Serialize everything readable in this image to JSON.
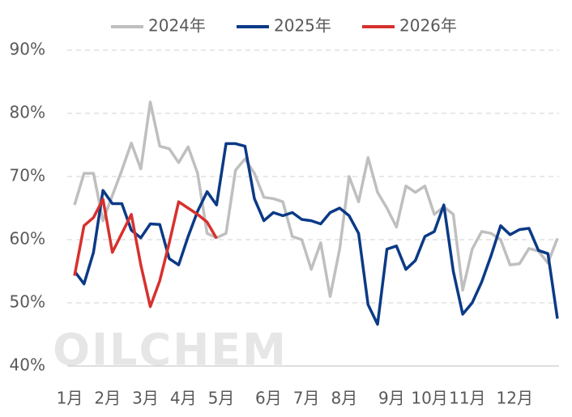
{
  "chart_data": {
    "type": "line",
    "watermark": "OILCHEM",
    "categories": [
      "1月",
      null,
      null,
      null,
      "2月",
      null,
      null,
      null,
      "3月",
      null,
      null,
      null,
      "4月",
      null,
      null,
      null,
      "5月",
      null,
      null,
      null,
      null,
      "6月",
      null,
      null,
      null,
      "7月",
      null,
      null,
      null,
      "8月",
      null,
      null,
      null,
      null,
      "9月",
      null,
      null,
      null,
      "10月",
      null,
      null,
      null,
      "11月",
      null,
      null,
      null,
      null,
      "12月",
      null,
      null,
      null,
      null
    ],
    "series": [
      {
        "name": "2024年",
        "color": "#bfbfbf",
        "values": [
          65.5,
          70.5,
          70.5,
          63,
          67,
          71,
          75.3,
          71.2,
          81.8,
          74.8,
          74.4,
          72.2,
          74.7,
          70.5,
          61,
          60.3,
          61,
          71,
          72.8,
          70.5,
          66.7,
          66.5,
          66,
          60.5,
          60,
          55.3,
          59.5,
          51,
          58.5,
          70,
          66,
          73,
          67.5,
          65,
          62,
          68.5,
          67.5,
          68.5,
          64,
          65.2,
          64,
          52,
          58.5,
          61.3,
          61,
          60,
          56,
          56.2,
          58.6,
          58.2,
          56.3,
          60.2
        ]
      },
      {
        "name": "2025年",
        "color": "#0b3a86",
        "values": [
          55,
          53,
          58,
          67.8,
          65.7,
          65.7,
          61.5,
          60.3,
          62.5,
          62.4,
          57,
          56,
          60.5,
          64.5,
          67.6,
          65.5,
          75.2,
          75.2,
          74.8,
          66.5,
          63,
          64.3,
          63.8,
          64.3,
          63.2,
          63,
          62.5,
          64.3,
          65,
          63.8,
          61,
          49.7,
          46.6,
          58.5,
          59,
          55.3,
          56.7,
          60.5,
          61.3,
          65.5,
          55,
          48.2,
          50,
          53.3,
          57.5,
          62.2,
          60.8,
          61.6,
          61.8,
          58.3,
          57.8,
          47.5
        ]
      },
      {
        "name": "2026年",
        "color": "#d7312e",
        "values": [
          54.3,
          62.2,
          63.5,
          66.4,
          58,
          61,
          64,
          56,
          49.4,
          53.5,
          59.5,
          66,
          65,
          64,
          62.8,
          60.2,
          null,
          null,
          null,
          null,
          null,
          null,
          null,
          null,
          null,
          null,
          null,
          null,
          null,
          null,
          null,
          null,
          null,
          null,
          null,
          null,
          null,
          null,
          null,
          null,
          null,
          null,
          null,
          null,
          null,
          null,
          null,
          null,
          null,
          null,
          null,
          null
        ]
      }
    ],
    "ylim": [
      40,
      90
    ],
    "yticks": [
      {
        "value": 40,
        "label": "40%"
      },
      {
        "value": 50,
        "label": "50%"
      },
      {
        "value": 60,
        "label": "60%"
      },
      {
        "value": 70,
        "label": "70%"
      },
      {
        "value": 80,
        "label": "80%"
      },
      {
        "value": 90,
        "label": "90%"
      }
    ],
    "grid": true,
    "legend": "top"
  }
}
